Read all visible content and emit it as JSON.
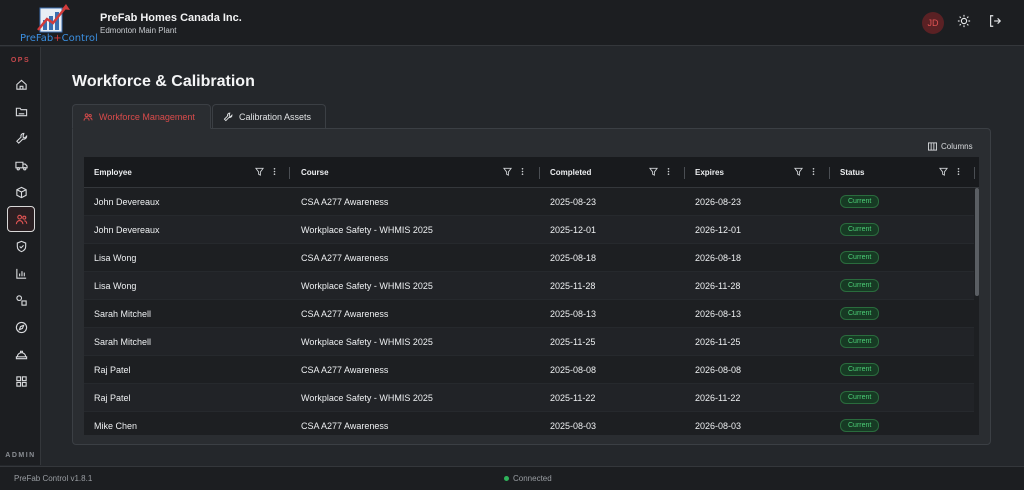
{
  "header": {
    "logo_text_left": "PreFab",
    "logo_text_plus": "+",
    "logo_text_right": "Control",
    "company": "PreFab Homes Canada Inc.",
    "plant": "Edmonton Main Plant",
    "avatar_initials": "JD",
    "icons": [
      "sun-icon",
      "logout-icon"
    ]
  },
  "sidebar": {
    "ops_label": "OPS",
    "admin_label": "ADMIN",
    "items": [
      "home-icon",
      "folder-icon",
      "wrench-icon",
      "truck-icon",
      "box-icon",
      "users-icon",
      "shield-icon",
      "bar-chart-icon",
      "shapes-icon",
      "compass-icon",
      "hardhat-icon",
      "grid-icon"
    ],
    "active_index": 5
  },
  "page": {
    "title": "Workforce & Calibration",
    "tabs": [
      {
        "label": "Workforce Management",
        "active": true
      },
      {
        "label": "Calibration Assets",
        "active": false
      }
    ],
    "columns_label": "Columns"
  },
  "table": {
    "headers": [
      "Employee",
      "Course",
      "Completed",
      "Expires",
      "Status"
    ],
    "rows": [
      {
        "employee": "John Devereaux",
        "course": "CSA A277 Awareness",
        "completed": "2025-08-23",
        "expires": "2026-08-23",
        "status": "Current"
      },
      {
        "employee": "John Devereaux",
        "course": "Workplace Safety - WHMIS 2025",
        "completed": "2025-12-01",
        "expires": "2026-12-01",
        "status": "Current"
      },
      {
        "employee": "Lisa Wong",
        "course": "CSA A277 Awareness",
        "completed": "2025-08-18",
        "expires": "2026-08-18",
        "status": "Current"
      },
      {
        "employee": "Lisa Wong",
        "course": "Workplace Safety - WHMIS 2025",
        "completed": "2025-11-28",
        "expires": "2026-11-28",
        "status": "Current"
      },
      {
        "employee": "Sarah Mitchell",
        "course": "CSA A277 Awareness",
        "completed": "2025-08-13",
        "expires": "2026-08-13",
        "status": "Current"
      },
      {
        "employee": "Sarah Mitchell",
        "course": "Workplace Safety - WHMIS 2025",
        "completed": "2025-11-25",
        "expires": "2026-11-25",
        "status": "Current"
      },
      {
        "employee": "Raj Patel",
        "course": "CSA A277 Awareness",
        "completed": "2025-08-08",
        "expires": "2026-08-08",
        "status": "Current"
      },
      {
        "employee": "Raj Patel",
        "course": "Workplace Safety - WHMIS 2025",
        "completed": "2025-11-22",
        "expires": "2026-11-22",
        "status": "Current"
      },
      {
        "employee": "Mike Chen",
        "course": "CSA A277 Awareness",
        "completed": "2025-08-03",
        "expires": "2026-08-03",
        "status": "Current"
      }
    ]
  },
  "footer": {
    "version": "PreFab Control v1.8.1",
    "connection": "Connected"
  },
  "colors": {
    "accent": "#d94b4b",
    "status_current": "#4ccf77",
    "connected": "#2fb35a"
  }
}
